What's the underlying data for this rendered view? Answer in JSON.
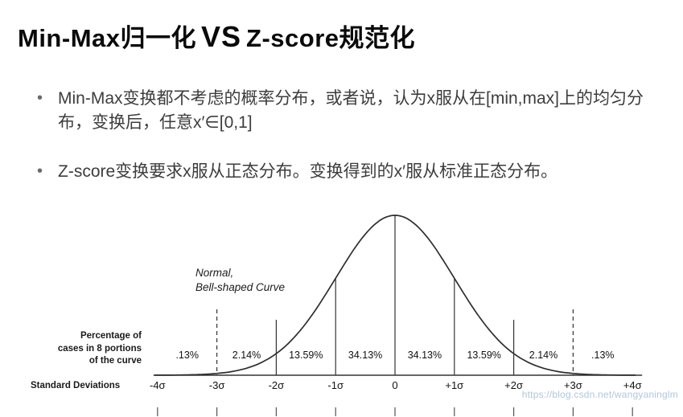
{
  "title": {
    "part1": "Min-Max归一化",
    "vs": "VS",
    "part2": "Z-score规范化"
  },
  "bullets": [
    "Min-Max变换都不考虑的概率分布，或者说，认为x服从在[min,max]上的均匀分布，变换后，任意x′∈[0,1]",
    "Z-score变换要求x服从正态分布。变换得到的x′服从标准正态分布。"
  ],
  "chart_data": {
    "type": "area",
    "title": "Normal, Bell-shaped Curve",
    "annotation": "Normal,\nBell-shaped Curve",
    "left_label": "Percentage of\ncases in 8 portions\nof the curve",
    "axis_label": "Standard Deviations",
    "sigma_ticks": [
      "-4σ",
      "-3σ",
      "-2σ",
      "-1σ",
      "0",
      "+1σ",
      "+2σ",
      "+3σ",
      "+4σ"
    ],
    "sigma_values": [
      -4,
      -3,
      -2,
      -1,
      0,
      1,
      2,
      3,
      4
    ],
    "segment_labels": [
      ".13%",
      "2.14%",
      "13.59%",
      "34.13%",
      "34.13%",
      "13.59%",
      "2.14%",
      ".13%"
    ],
    "segment_values": [
      0.13,
      2.14,
      13.59,
      34.13,
      34.13,
      13.59,
      2.14,
      0.13
    ],
    "x_range": [
      -4,
      4
    ],
    "grid": false,
    "legend": "none"
  },
  "watermark": "https://blog.csdn.net/wangyaninglm"
}
